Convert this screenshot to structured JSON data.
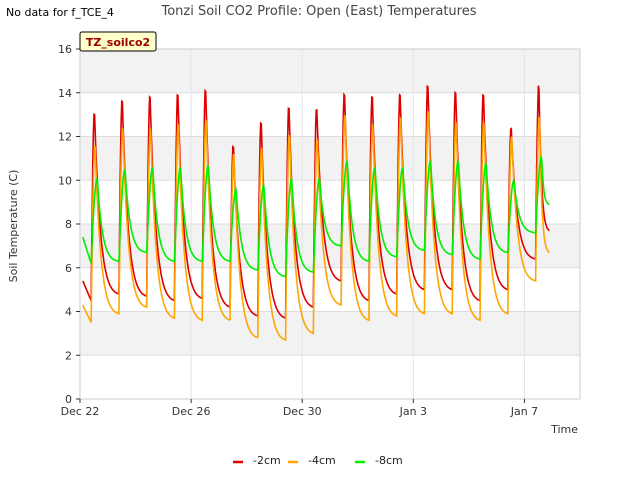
{
  "no_data_note": "No data for f_TCE_4",
  "chart_data": {
    "type": "line",
    "title": "Tonzi Soil CO2 Profile: Open (East) Temperatures",
    "xlabel": "Time",
    "ylabel": "Soil Temperature (C)",
    "tag_label": "TZ_soilco2",
    "ylim": [
      0,
      16
    ],
    "yticks": [
      0,
      2,
      4,
      6,
      8,
      10,
      12,
      14,
      16
    ],
    "xlim": [
      0,
      18
    ],
    "xticks": [
      {
        "x": 0,
        "label": "Dec 22"
      },
      {
        "x": 4,
        "label": "Dec 26"
      },
      {
        "x": 8,
        "label": "Dec 30"
      },
      {
        "x": 12,
        "label": "Jan 3"
      },
      {
        "x": 16,
        "label": "Jan 7"
      }
    ],
    "x_units": "days since Dec 22",
    "grid": "horizontal bands",
    "legend_position": "bottom-center",
    "series": [
      {
        "name": "-2cm",
        "color": "#dd0000",
        "days": [
          {
            "start": 0.4,
            "max": 13.2,
            "min": 4.5
          },
          {
            "start": 1.4,
            "max": 13.8,
            "min": 4.8
          },
          {
            "start": 2.4,
            "max": 14.0,
            "min": 4.7
          },
          {
            "start": 3.4,
            "max": 14.1,
            "min": 4.5
          },
          {
            "start": 4.4,
            "max": 14.3,
            "min": 4.6
          },
          {
            "start": 5.4,
            "max": 11.7,
            "min": 4.2
          },
          {
            "start": 6.4,
            "max": 12.8,
            "min": 3.8
          },
          {
            "start": 7.4,
            "max": 13.5,
            "min": 3.7
          },
          {
            "start": 8.4,
            "max": 13.4,
            "min": 4.2
          },
          {
            "start": 9.4,
            "max": 14.1,
            "min": 5.4
          },
          {
            "start": 10.4,
            "max": 14.0,
            "min": 4.5
          },
          {
            "start": 11.4,
            "max": 14.1,
            "min": 4.8
          },
          {
            "start": 12.4,
            "max": 14.5,
            "min": 5.0
          },
          {
            "start": 13.4,
            "max": 14.2,
            "min": 5.0
          },
          {
            "start": 14.4,
            "max": 14.1,
            "min": 4.5
          },
          {
            "start": 15.4,
            "max": 12.5,
            "min": 5.0
          },
          {
            "start": 16.4,
            "max": 14.5,
            "min": 6.4
          }
        ],
        "first_value": 5.4,
        "last_value": 7.7
      },
      {
        "name": "-4cm",
        "color": "#ffa500",
        "days": [
          {
            "start": 0.4,
            "max": 11.7,
            "min": 3.5
          },
          {
            "start": 1.4,
            "max": 12.5,
            "min": 3.9
          },
          {
            "start": 2.4,
            "max": 12.5,
            "min": 4.2
          },
          {
            "start": 3.4,
            "max": 12.7,
            "min": 3.7
          },
          {
            "start": 4.4,
            "max": 12.9,
            "min": 3.6
          },
          {
            "start": 5.4,
            "max": 11.3,
            "min": 3.6
          },
          {
            "start": 6.4,
            "max": 11.6,
            "min": 2.8
          },
          {
            "start": 7.4,
            "max": 12.2,
            "min": 2.7
          },
          {
            "start": 8.4,
            "max": 12.0,
            "min": 3.0
          },
          {
            "start": 9.4,
            "max": 13.1,
            "min": 4.3
          },
          {
            "start": 10.4,
            "max": 12.7,
            "min": 3.6
          },
          {
            "start": 11.4,
            "max": 13.0,
            "min": 3.8
          },
          {
            "start": 12.4,
            "max": 13.3,
            "min": 3.9
          },
          {
            "start": 13.4,
            "max": 12.8,
            "min": 3.9
          },
          {
            "start": 14.4,
            "max": 12.8,
            "min": 3.6
          },
          {
            "start": 15.4,
            "max": 12.1,
            "min": 3.9
          },
          {
            "start": 16.4,
            "max": 13.0,
            "min": 5.4
          }
        ],
        "first_value": 4.3,
        "last_value": 6.7
      },
      {
        "name": "-8cm",
        "color": "#00ee00",
        "days": [
          {
            "start": 0.4,
            "max": 10.1,
            "min": 6.2
          },
          {
            "start": 1.4,
            "max": 10.5,
            "min": 6.3
          },
          {
            "start": 2.4,
            "max": 10.6,
            "min": 6.7
          },
          {
            "start": 3.4,
            "max": 10.6,
            "min": 6.3
          },
          {
            "start": 4.4,
            "max": 10.7,
            "min": 6.3
          },
          {
            "start": 5.4,
            "max": 9.6,
            "min": 6.3
          },
          {
            "start": 6.4,
            "max": 9.8,
            "min": 5.9
          },
          {
            "start": 7.4,
            "max": 10.1,
            "min": 5.6
          },
          {
            "start": 8.4,
            "max": 10.1,
            "min": 5.8
          },
          {
            "start": 9.4,
            "max": 10.9,
            "min": 7.0
          },
          {
            "start": 10.4,
            "max": 10.6,
            "min": 6.3
          },
          {
            "start": 11.4,
            "max": 10.6,
            "min": 6.5
          },
          {
            "start": 12.4,
            "max": 10.9,
            "min": 6.8
          },
          {
            "start": 13.4,
            "max": 10.9,
            "min": 6.6
          },
          {
            "start": 14.4,
            "max": 10.8,
            "min": 6.4
          },
          {
            "start": 15.4,
            "max": 10.0,
            "min": 6.7
          },
          {
            "start": 16.4,
            "max": 11.1,
            "min": 7.6
          }
        ],
        "first_value": 7.4,
        "last_value": 8.9
      }
    ]
  }
}
